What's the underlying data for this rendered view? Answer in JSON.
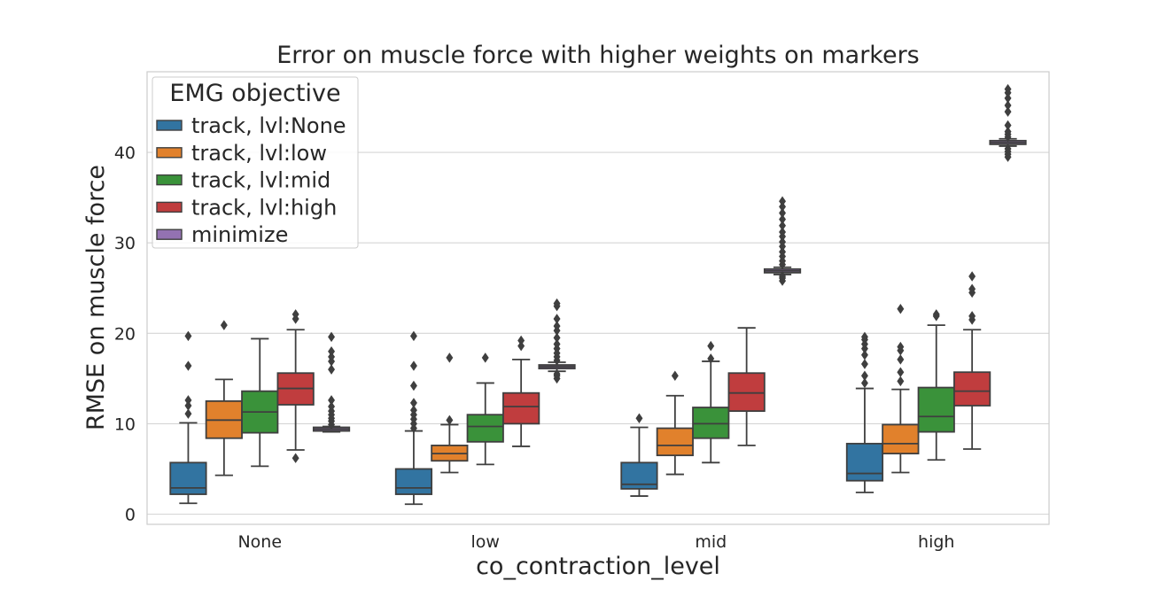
{
  "chart_data": {
    "type": "box",
    "title": "Error on muscle force with higher weights on markers",
    "xlabel": "co_contraction_level",
    "ylabel": "RMSE on muscle force",
    "categories": [
      "None",
      "low",
      "mid",
      "high"
    ],
    "ylim": [
      -1,
      50
    ],
    "yticks": [
      0,
      10,
      20,
      30,
      40
    ],
    "grid": true,
    "legend": {
      "title": "EMG objective",
      "position": "top-left"
    },
    "series": [
      {
        "name": "track, lvl:None",
        "color": "#3274a1",
        "boxes": [
          {
            "whislo": 1.2,
            "q1": 2.2,
            "med": 2.9,
            "q3": 5.7,
            "whishi": 10.1,
            "fliers": [
              11.1,
              12.0,
              12.6,
              16.4,
              19.7
            ]
          },
          {
            "whislo": 1.1,
            "q1": 2.2,
            "med": 2.9,
            "q3": 5.0,
            "whishi": 9.2,
            "fliers": [
              9.5,
              10.0,
              10.5,
              11.0,
              11.5,
              12.3,
              14.2,
              16.4,
              19.7
            ]
          },
          {
            "whislo": 2.0,
            "q1": 2.8,
            "med": 3.3,
            "q3": 5.7,
            "whishi": 9.6,
            "fliers": [
              10.6
            ]
          },
          {
            "whislo": 2.4,
            "q1": 3.7,
            "med": 4.5,
            "q3": 7.8,
            "whishi": 13.9,
            "fliers": [
              14.5,
              15.3,
              16.6,
              17.6,
              18.3,
              18.8,
              19.3,
              19.6
            ]
          }
        ]
      },
      {
        "name": "track, lvl:low",
        "color": "#e1812c",
        "boxes": [
          {
            "whislo": 4.3,
            "q1": 8.4,
            "med": 10.4,
            "q3": 12.5,
            "whishi": 14.9,
            "fliers": [
              20.9
            ]
          },
          {
            "whislo": 4.6,
            "q1": 5.9,
            "med": 6.7,
            "q3": 7.6,
            "whishi": 9.9,
            "fliers": [
              10.4,
              17.3
            ]
          },
          {
            "whislo": 4.4,
            "q1": 6.5,
            "med": 7.6,
            "q3": 9.5,
            "whishi": 13.1,
            "fliers": [
              15.3
            ]
          },
          {
            "whislo": 4.6,
            "q1": 6.7,
            "med": 7.8,
            "q3": 9.9,
            "whishi": 13.8,
            "fliers": [
              14.7,
              15.7,
              17.1,
              18.1,
              18.5,
              22.7
            ]
          }
        ]
      },
      {
        "name": "track, lvl:mid",
        "color": "#3a923a",
        "boxes": [
          {
            "whislo": 5.3,
            "q1": 9.0,
            "med": 11.3,
            "q3": 13.6,
            "whishi": 19.4,
            "fliers": []
          },
          {
            "whislo": 5.5,
            "q1": 8.0,
            "med": 9.7,
            "q3": 11.0,
            "whishi": 14.5,
            "fliers": [
              17.3
            ]
          },
          {
            "whislo": 5.7,
            "q1": 8.4,
            "med": 10.0,
            "q3": 11.8,
            "whishi": 16.9,
            "fliers": [
              17.2,
              18.6
            ]
          },
          {
            "whislo": 6.0,
            "q1": 9.1,
            "med": 10.8,
            "q3": 14.0,
            "whishi": 20.9,
            "fliers": [
              21.9,
              22.1
            ]
          }
        ]
      },
      {
        "name": "track, lvl:high",
        "color": "#c03d3e",
        "boxes": [
          {
            "whislo": 7.1,
            "q1": 12.1,
            "med": 13.9,
            "q3": 15.6,
            "whishi": 20.4,
            "fliers": [
              6.2,
              21.6,
              22.1
            ]
          },
          {
            "whislo": 7.5,
            "q1": 10.0,
            "med": 11.9,
            "q3": 13.4,
            "whishi": 17.1,
            "fliers": [
              18.6,
              19.2
            ]
          },
          {
            "whislo": 7.6,
            "q1": 11.4,
            "med": 13.4,
            "q3": 15.6,
            "whishi": 20.6,
            "fliers": []
          },
          {
            "whislo": 7.2,
            "q1": 12.0,
            "med": 13.6,
            "q3": 15.7,
            "whishi": 20.4,
            "fliers": [
              21.5,
              21.9,
              24.5,
              24.9,
              26.3
            ]
          }
        ]
      },
      {
        "name": "minimize",
        "color": "#9372b2",
        "boxes": [
          {
            "whislo": 9.1,
            "q1": 9.2,
            "med": 9.4,
            "q3": 9.6,
            "whishi": 9.7,
            "fliers": [
              9.9,
              10.3,
              10.6,
              11.0,
              11.4,
              11.9,
              12.6,
              16.0,
              16.9,
              17.4,
              18.0,
              19.6
            ]
          },
          {
            "whislo": 15.8,
            "q1": 16.1,
            "med": 16.3,
            "q3": 16.5,
            "whishi": 16.8,
            "fliers": [
              15.0,
              15.3,
              15.5,
              17.0,
              17.4,
              17.8,
              18.3,
              18.8,
              19.5,
              20.3,
              20.8,
              21.6,
              23.0,
              23.3
            ]
          },
          {
            "whislo": 26.5,
            "q1": 26.7,
            "med": 26.9,
            "q3": 27.1,
            "whishi": 27.3,
            "fliers": [
              25.8,
              26.1,
              26.3,
              27.6,
              28.0,
              28.5,
              29.0,
              29.6,
              30.1,
              30.7,
              31.2,
              31.9,
              32.6,
              33.3,
              34.0,
              34.6
            ]
          },
          {
            "whislo": 40.7,
            "q1": 40.9,
            "med": 41.1,
            "q3": 41.3,
            "whishi": 41.5,
            "fliers": [
              39.5,
              39.8,
              40.1,
              40.4,
              41.7,
              42.0,
              42.3,
              43.0,
              44.5,
              45.2,
              46.0,
              46.6,
              47.0
            ]
          }
        ]
      }
    ]
  }
}
